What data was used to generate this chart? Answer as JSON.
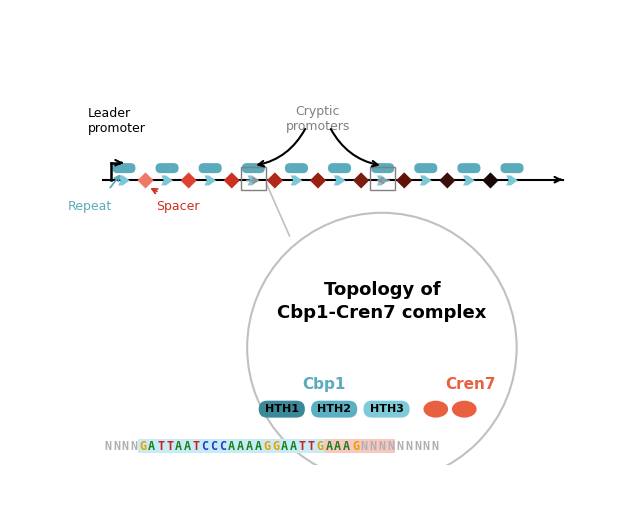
{
  "bg_color": "#ffffff",
  "title": "Topology of\nCbp1-Cren7 complex",
  "cbp1_label": "Cbp1",
  "cren7_label": "Cren7",
  "cbp1_color": "#5aabbb",
  "cren7_color": "#e86040",
  "hth_colors": [
    "#3a8898",
    "#5ab0c0",
    "#7fcad8"
  ],
  "hth_labels": [
    "HTH1",
    "HTH2",
    "HTH3"
  ],
  "repeat_color": "#5aabbb",
  "repeat_arrow_color": "#7ac8d8",
  "spacer_colors": [
    "#f07868",
    "#e04030",
    "#cc3020",
    "#b02818",
    "#982010",
    "#7a1c10",
    "#601408",
    "#3c0f0a",
    "#180808"
  ],
  "leader_promoter_label": "Leader\npromoter",
  "cryptic_promoters_label": "Cryptic\npromoters",
  "repeat_label": "Repeat",
  "spacer_label": "Spacer",
  "dna_seq": "NNNNGATTAATCCCAAAAGGAATTGAAAGNNNNNNNNN",
  "seq_colors": {
    "N": "#b0b0b0",
    "G": "#e8a000",
    "A": "#208020",
    "T": "#cc2020",
    "C": "#2040cc"
  },
  "cbp1_highlight": "#c8ecf5",
  "cren7_highlight": "#f8c8c0",
  "circle_color": "#c0c0c0",
  "arrow_color": "#404040"
}
